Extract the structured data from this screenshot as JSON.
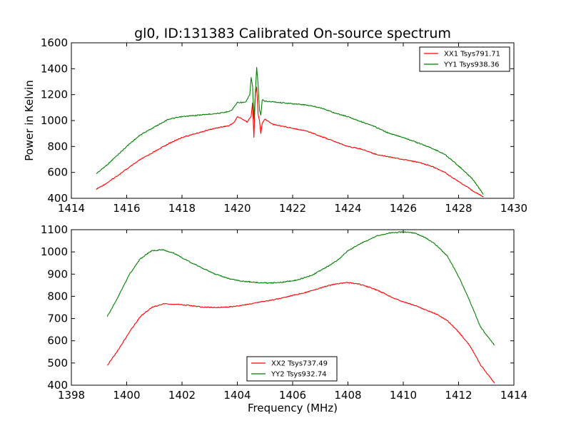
{
  "chart_data": [
    {
      "type": "line",
      "title": "gl0, ID:131383 Calibrated On-source spectrum",
      "xlabel": "",
      "ylabel": "Power in Kelvin",
      "xlim": [
        1414,
        1430
      ],
      "ylim": [
        400,
        1600
      ],
      "xticks": [
        "1414",
        "1416",
        "1418",
        "1420",
        "1422",
        "1424",
        "1426",
        "1428",
        "1430"
      ],
      "yticks": [
        "400",
        "600",
        "800",
        "1000",
        "1200",
        "1400",
        "1600"
      ],
      "legend_position": "top-right",
      "series": [
        {
          "name": "XX1 Tsys791.71",
          "color": "#ff0000",
          "points": [
            [
              1414.9,
              470
            ],
            [
              1415.3,
              520
            ],
            [
              1415.7,
              580
            ],
            [
              1416.1,
              640
            ],
            [
              1416.5,
              700
            ],
            [
              1417,
              760
            ],
            [
              1417.5,
              820
            ],
            [
              1418,
              870
            ],
            [
              1418.5,
              900
            ],
            [
              1419,
              930
            ],
            [
              1419.4,
              950
            ],
            [
              1419.7,
              960
            ],
            [
              1419.9,
              990
            ],
            [
              1420.0,
              1030
            ],
            [
              1420.2,
              1010
            ],
            [
              1420.35,
              990
            ],
            [
              1420.5,
              1030
            ],
            [
              1420.55,
              1140
            ],
            [
              1420.6,
              870
            ],
            [
              1420.65,
              1200
            ],
            [
              1420.7,
              1260
            ],
            [
              1420.75,
              1050
            ],
            [
              1420.8,
              1000
            ],
            [
              1420.85,
              900
            ],
            [
              1420.9,
              980
            ],
            [
              1421.0,
              1010
            ],
            [
              1421.3,
              970
            ],
            [
              1421.8,
              950
            ],
            [
              1422.5,
              920
            ],
            [
              1423,
              880
            ],
            [
              1423.5,
              840
            ],
            [
              1424,
              800
            ],
            [
              1424.5,
              780
            ],
            [
              1425,
              740
            ],
            [
              1425.5,
              720
            ],
            [
              1426,
              700
            ],
            [
              1426.5,
              680
            ],
            [
              1427,
              650
            ],
            [
              1427.5,
              600
            ],
            [
              1428,
              530
            ],
            [
              1428.5,
              460
            ],
            [
              1428.9,
              410
            ]
          ]
        },
        {
          "name": "YY1 Tsys938.36",
          "color": "#008000",
          "points": [
            [
              1414.9,
              590
            ],
            [
              1415.3,
              660
            ],
            [
              1415.7,
              740
            ],
            [
              1416.1,
              820
            ],
            [
              1416.5,
              890
            ],
            [
              1417,
              950
            ],
            [
              1417.5,
              1010
            ],
            [
              1418,
              1030
            ],
            [
              1418.5,
              1040
            ],
            [
              1419,
              1050
            ],
            [
              1419.5,
              1060
            ],
            [
              1419.8,
              1080
            ],
            [
              1420.0,
              1140
            ],
            [
              1420.3,
              1140
            ],
            [
              1420.45,
              1200
            ],
            [
              1420.5,
              1330
            ],
            [
              1420.55,
              1270
            ],
            [
              1420.6,
              1010
            ],
            [
              1420.65,
              1200
            ],
            [
              1420.7,
              1410
            ],
            [
              1420.75,
              1280
            ],
            [
              1420.8,
              1080
            ],
            [
              1420.85,
              1040
            ],
            [
              1420.9,
              1160
            ],
            [
              1421.0,
              1150
            ],
            [
              1421.5,
              1140
            ],
            [
              1422,
              1130
            ],
            [
              1422.5,
              1120
            ],
            [
              1423,
              1100
            ],
            [
              1423.5,
              1060
            ],
            [
              1424,
              1030
            ],
            [
              1424.5,
              990
            ],
            [
              1425,
              950
            ],
            [
              1425.5,
              900
            ],
            [
              1426,
              870
            ],
            [
              1426.5,
              830
            ],
            [
              1427,
              790
            ],
            [
              1427.5,
              740
            ],
            [
              1428,
              650
            ],
            [
              1428.5,
              550
            ],
            [
              1428.9,
              430
            ]
          ]
        }
      ]
    },
    {
      "type": "line",
      "title": "",
      "xlabel": "Frequency (MHz)",
      "ylabel": "",
      "xlim": [
        1398,
        1414
      ],
      "ylim": [
        400,
        1100
      ],
      "xticks": [
        "1398",
        "1400",
        "1402",
        "1404",
        "1406",
        "1408",
        "1410",
        "1412",
        "1414"
      ],
      "yticks": [
        "400",
        "500",
        "600",
        "700",
        "800",
        "900",
        "1000",
        "1100"
      ],
      "legend_position": "bottom-center",
      "series": [
        {
          "name": "XX2 Tsys737.49",
          "color": "#ff0000",
          "points": [
            [
              1399.3,
              490
            ],
            [
              1399.7,
              560
            ],
            [
              1400.1,
              640
            ],
            [
              1400.5,
              710
            ],
            [
              1400.9,
              750
            ],
            [
              1401.3,
              765
            ],
            [
              1401.7,
              765
            ],
            [
              1402.2,
              760
            ],
            [
              1402.7,
              752
            ],
            [
              1403.2,
              750
            ],
            [
              1403.7,
              752
            ],
            [
              1404.2,
              760
            ],
            [
              1404.7,
              772
            ],
            [
              1405.2,
              782
            ],
            [
              1405.7,
              795
            ],
            [
              1406.2,
              810
            ],
            [
              1406.7,
              825
            ],
            [
              1407.2,
              845
            ],
            [
              1407.6,
              857
            ],
            [
              1408.0,
              862
            ],
            [
              1408.4,
              855
            ],
            [
              1408.8,
              840
            ],
            [
              1409.2,
              820
            ],
            [
              1409.6,
              795
            ],
            [
              1410.0,
              775
            ],
            [
              1410.4,
              760
            ],
            [
              1410.8,
              740
            ],
            [
              1411.2,
              720
            ],
            [
              1411.6,
              690
            ],
            [
              1412.0,
              640
            ],
            [
              1412.4,
              580
            ],
            [
              1412.8,
              490
            ],
            [
              1413.3,
              410
            ]
          ]
        },
        {
          "name": "YY2 Tsys932.74",
          "color": "#008000",
          "points": [
            [
              1399.3,
              710
            ],
            [
              1399.7,
              800
            ],
            [
              1400.1,
              900
            ],
            [
              1400.5,
              970
            ],
            [
              1400.9,
              1005
            ],
            [
              1401.3,
              1010
            ],
            [
              1401.7,
              995
            ],
            [
              1402.2,
              960
            ],
            [
              1402.7,
              930
            ],
            [
              1403.2,
              900
            ],
            [
              1403.7,
              880
            ],
            [
              1404.2,
              868
            ],
            [
              1404.7,
              862
            ],
            [
              1405.2,
              860
            ],
            [
              1405.7,
              865
            ],
            [
              1406.2,
              875
            ],
            [
              1406.7,
              895
            ],
            [
              1407.2,
              930
            ],
            [
              1407.6,
              960
            ],
            [
              1408.0,
              1005
            ],
            [
              1408.5,
              1040
            ],
            [
              1409.0,
              1070
            ],
            [
              1409.5,
              1085
            ],
            [
              1410.0,
              1090
            ],
            [
              1410.4,
              1085
            ],
            [
              1410.8,
              1065
            ],
            [
              1411.2,
              1030
            ],
            [
              1411.6,
              980
            ],
            [
              1412.0,
              890
            ],
            [
              1412.4,
              780
            ],
            [
              1412.8,
              660
            ],
            [
              1413.3,
              580
            ]
          ]
        }
      ]
    }
  ]
}
